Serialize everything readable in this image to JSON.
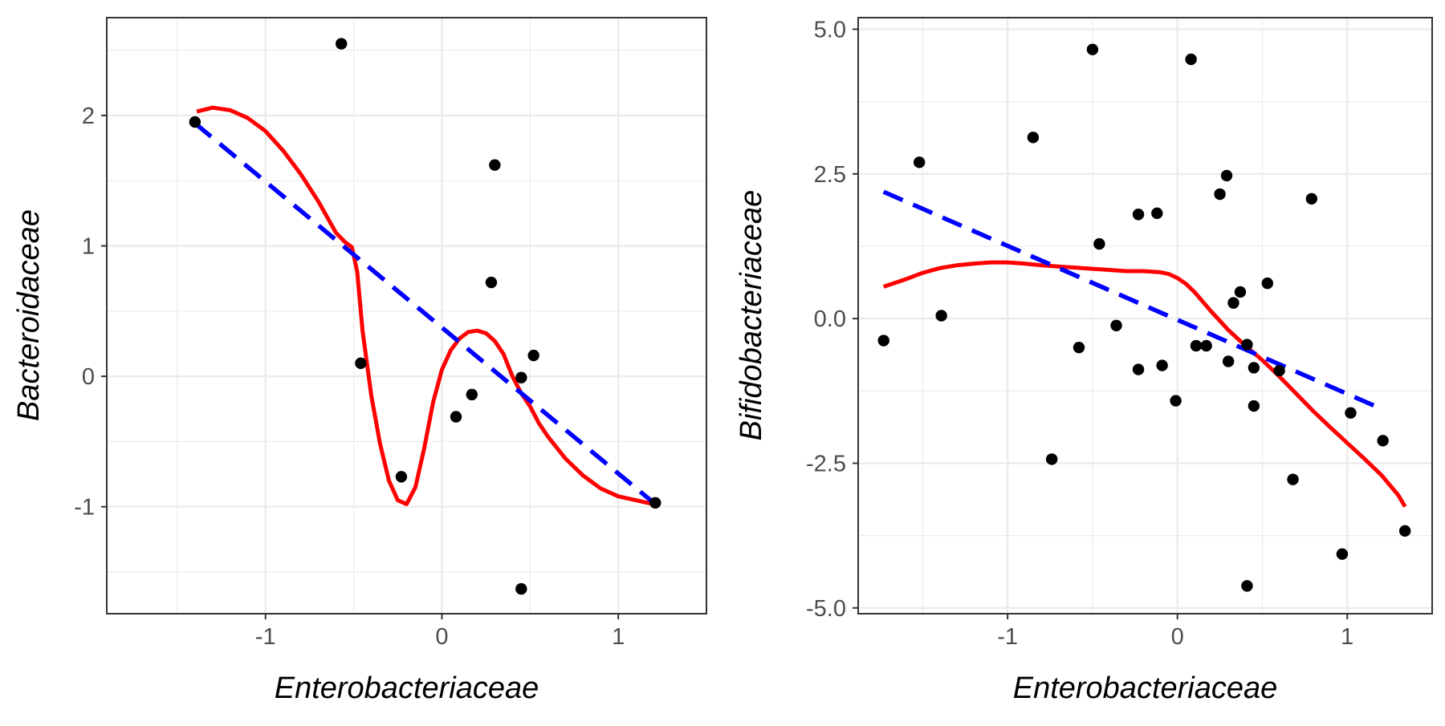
{
  "colors": {
    "points": "#000000",
    "loess_line": "#ff0000",
    "linear_line": "#0000ff",
    "grid": "#ebebeb",
    "panel_border": "#333333",
    "tick_label": "#4d4d4d"
  },
  "chart_data": [
    {
      "type": "scatter",
      "xlabel": "Enterobacteriaceae",
      "ylabel": "Bacteroidaceae",
      "xlim": [
        -1.9,
        1.5
      ],
      "ylim": [
        -1.82,
        2.75
      ],
      "x_ticks": [
        -1,
        0,
        1
      ],
      "x_tick_labels": [
        "-1",
        "0",
        "1"
      ],
      "y_ticks": [
        -1,
        0,
        1,
        2
      ],
      "y_tick_labels": [
        "-1",
        "0",
        "1",
        "2"
      ],
      "grid": true,
      "points": [
        {
          "x": -1.4,
          "y": 1.95
        },
        {
          "x": -0.57,
          "y": 2.55
        },
        {
          "x": -0.46,
          "y": 0.1
        },
        {
          "x": -0.23,
          "y": -0.77
        },
        {
          "x": 0.08,
          "y": -0.31
        },
        {
          "x": 0.17,
          "y": -0.14
        },
        {
          "x": 0.28,
          "y": 0.72
        },
        {
          "x": 0.3,
          "y": 1.62
        },
        {
          "x": 0.45,
          "y": -0.01
        },
        {
          "x": 0.52,
          "y": 0.16
        },
        {
          "x": 0.45,
          "y": -1.63
        },
        {
          "x": 1.21,
          "y": -0.97
        }
      ],
      "fit_lines": [
        {
          "style": "loess",
          "points": [
            [
              -1.39,
              2.03
            ],
            [
              -1.3,
              2.06
            ],
            [
              -1.2,
              2.04
            ],
            [
              -1.1,
              1.98
            ],
            [
              -1.0,
              1.88
            ],
            [
              -0.9,
              1.73
            ],
            [
              -0.8,
              1.55
            ],
            [
              -0.7,
              1.34
            ],
            [
              -0.6,
              1.1
            ],
            [
              -0.55,
              1.03
            ],
            [
              -0.51,
              0.99
            ],
            [
              -0.48,
              0.8
            ],
            [
              -0.45,
              0.35
            ],
            [
              -0.4,
              -0.15
            ],
            [
              -0.35,
              -0.52
            ],
            [
              -0.3,
              -0.8
            ],
            [
              -0.25,
              -0.95
            ],
            [
              -0.2,
              -0.98
            ],
            [
              -0.15,
              -0.85
            ],
            [
              -0.1,
              -0.55
            ],
            [
              -0.05,
              -0.2
            ],
            [
              0.0,
              0.05
            ],
            [
              0.05,
              0.2
            ],
            [
              0.1,
              0.29
            ],
            [
              0.15,
              0.34
            ],
            [
              0.2,
              0.35
            ],
            [
              0.25,
              0.33
            ],
            [
              0.3,
              0.27
            ],
            [
              0.35,
              0.17
            ],
            [
              0.4,
              0.0
            ],
            [
              0.45,
              -0.13
            ],
            [
              0.5,
              -0.23
            ],
            [
              0.55,
              -0.36
            ],
            [
              0.6,
              -0.46
            ],
            [
              0.7,
              -0.63
            ],
            [
              0.8,
              -0.76
            ],
            [
              0.9,
              -0.86
            ],
            [
              1.0,
              -0.92
            ],
            [
              1.1,
              -0.95
            ],
            [
              1.2,
              -0.98
            ]
          ]
        },
        {
          "style": "linear",
          "points": [
            [
              -1.4,
              1.94
            ],
            [
              1.21,
              -0.98
            ]
          ]
        }
      ]
    },
    {
      "type": "scatter",
      "xlabel": "Enterobacteriaceae",
      "ylabel": "Bifidobacteriaceae",
      "xlim": [
        -1.88,
        1.5
      ],
      "ylim": [
        -5.1,
        5.2
      ],
      "x_ticks": [
        -1,
        0,
        1
      ],
      "x_tick_labels": [
        "-1",
        "0",
        "1"
      ],
      "y_ticks": [
        -5,
        -2.5,
        0,
        2.5,
        5
      ],
      "y_tick_labels": [
        "-5.0",
        "-2.5",
        "0.0",
        "2.5",
        "5.0"
      ],
      "grid": true,
      "points": [
        {
          "x": -1.73,
          "y": -0.38
        },
        {
          "x": -1.52,
          "y": 2.7
        },
        {
          "x": -1.39,
          "y": 0.05
        },
        {
          "x": -0.85,
          "y": 3.13
        },
        {
          "x": -0.74,
          "y": -2.43
        },
        {
          "x": -0.58,
          "y": -0.5
        },
        {
          "x": -0.5,
          "y": 4.65
        },
        {
          "x": -0.46,
          "y": 1.29
        },
        {
          "x": -0.36,
          "y": -0.12
        },
        {
          "x": -0.23,
          "y": 1.8
        },
        {
          "x": -0.23,
          "y": -0.88
        },
        {
          "x": -0.12,
          "y": 1.82
        },
        {
          "x": -0.09,
          "y": -0.81
        },
        {
          "x": -0.01,
          "y": -1.42
        },
        {
          "x": 0.08,
          "y": 4.48
        },
        {
          "x": 0.11,
          "y": -0.47
        },
        {
          "x": 0.17,
          "y": -0.47
        },
        {
          "x": 0.25,
          "y": 2.15
        },
        {
          "x": 0.29,
          "y": 2.47
        },
        {
          "x": 0.3,
          "y": -0.74
        },
        {
          "x": 0.33,
          "y": 0.27
        },
        {
          "x": 0.37,
          "y": 0.46
        },
        {
          "x": 0.41,
          "y": -0.45
        },
        {
          "x": 0.45,
          "y": -0.85
        },
        {
          "x": 0.45,
          "y": -1.51
        },
        {
          "x": 0.41,
          "y": -4.62
        },
        {
          "x": 0.53,
          "y": 0.61
        },
        {
          "x": 0.6,
          "y": -0.9
        },
        {
          "x": 0.68,
          "y": -2.78
        },
        {
          "x": 0.79,
          "y": 2.07
        },
        {
          "x": 0.97,
          "y": -4.07
        },
        {
          "x": 1.02,
          "y": -1.63
        },
        {
          "x": 1.21,
          "y": -2.11
        },
        {
          "x": 1.34,
          "y": -3.67
        }
      ],
      "fit_lines": [
        {
          "style": "loess",
          "points": [
            [
              -1.73,
              0.55
            ],
            [
              -1.6,
              0.68
            ],
            [
              -1.5,
              0.79
            ],
            [
              -1.4,
              0.87
            ],
            [
              -1.3,
              0.92
            ],
            [
              -1.2,
              0.95
            ],
            [
              -1.1,
              0.97
            ],
            [
              -1.0,
              0.97
            ],
            [
              -0.9,
              0.95
            ],
            [
              -0.8,
              0.92
            ],
            [
              -0.7,
              0.9
            ],
            [
              -0.6,
              0.88
            ],
            [
              -0.5,
              0.86
            ],
            [
              -0.4,
              0.84
            ],
            [
              -0.3,
              0.82
            ],
            [
              -0.2,
              0.82
            ],
            [
              -0.1,
              0.8
            ],
            [
              -0.05,
              0.77
            ],
            [
              0.0,
              0.7
            ],
            [
              0.05,
              0.6
            ],
            [
              0.1,
              0.46
            ],
            [
              0.2,
              0.12
            ],
            [
              0.3,
              -0.2
            ],
            [
              0.4,
              -0.47
            ],
            [
              0.5,
              -0.72
            ],
            [
              0.6,
              -1.0
            ],
            [
              0.7,
              -1.3
            ],
            [
              0.8,
              -1.6
            ],
            [
              0.9,
              -1.88
            ],
            [
              1.0,
              -2.15
            ],
            [
              1.1,
              -2.42
            ],
            [
              1.2,
              -2.7
            ],
            [
              1.3,
              -3.05
            ],
            [
              1.34,
              -3.25
            ]
          ]
        },
        {
          "style": "linear",
          "points": [
            [
              -1.73,
              2.19
            ],
            [
              1.21,
              -1.57
            ]
          ]
        }
      ]
    }
  ]
}
